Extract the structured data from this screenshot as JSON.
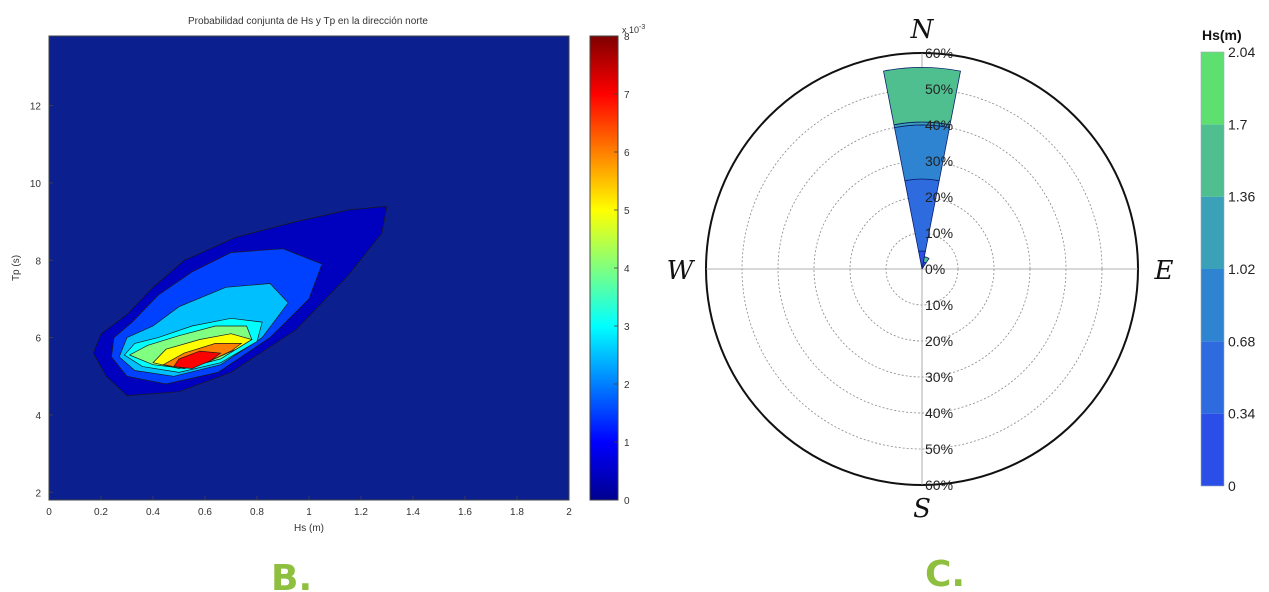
{
  "panels": {
    "b_label": "B.",
    "c_label": "C."
  },
  "colors": {
    "accent": "#8fbf3f"
  },
  "chart_data": [
    {
      "type": "heatmap",
      "title": "Probabilidad conjunta de Hs y Tp en la dirección norte",
      "xlabel": "Hs (m)",
      "ylabel": "Tp (s)",
      "xlim": [
        0,
        2
      ],
      "ylim": [
        1.8,
        13.8
      ],
      "x_ticks": [
        "0",
        "0.2",
        "0.4",
        "0.6",
        "0.8",
        "1",
        "1.2",
        "1.4",
        "1.6",
        "1.8",
        "2"
      ],
      "y_ticks": [
        "2",
        "4",
        "6",
        "8",
        "10",
        "12"
      ],
      "colorbar": {
        "min": 0,
        "max": 8,
        "ticks": [
          "0",
          "1",
          "2",
          "3",
          "4",
          "5",
          "6",
          "7",
          "8"
        ],
        "multiplier": "x 10",
        "exponent": "-3"
      },
      "contours": [
        {
          "level": 0.5,
          "points": [
            [
              0.17,
              5.6
            ],
            [
              0.22,
              5.0
            ],
            [
              0.3,
              4.5
            ],
            [
              0.5,
              4.6
            ],
            [
              0.7,
              5.1
            ],
            [
              0.95,
              6.2
            ],
            [
              1.15,
              7.6
            ],
            [
              1.28,
              8.7
            ],
            [
              1.3,
              9.4
            ],
            [
              1.15,
              9.3
            ],
            [
              0.95,
              9.0
            ],
            [
              0.72,
              8.6
            ],
            [
              0.52,
              8.0
            ],
            [
              0.4,
              7.3
            ],
            [
              0.3,
              6.6
            ],
            [
              0.2,
              6.1
            ]
          ]
        },
        {
          "level": 1.5,
          "points": [
            [
              0.24,
              5.5
            ],
            [
              0.3,
              5.0
            ],
            [
              0.45,
              4.8
            ],
            [
              0.65,
              5.1
            ],
            [
              0.85,
              6.0
            ],
            [
              1.0,
              7.0
            ],
            [
              1.05,
              7.9
            ],
            [
              0.9,
              8.3
            ],
            [
              0.7,
              8.2
            ],
            [
              0.55,
              7.7
            ],
            [
              0.42,
              7.1
            ],
            [
              0.32,
              6.4
            ],
            [
              0.25,
              6.0
            ]
          ]
        },
        {
          "level": 2.5,
          "points": [
            [
              0.27,
              5.5
            ],
            [
              0.33,
              5.15
            ],
            [
              0.48,
              5.0
            ],
            [
              0.66,
              5.3
            ],
            [
              0.82,
              6.0
            ],
            [
              0.92,
              6.9
            ],
            [
              0.85,
              7.4
            ],
            [
              0.68,
              7.3
            ],
            [
              0.5,
              6.8
            ],
            [
              0.4,
              6.3
            ],
            [
              0.3,
              6.0
            ]
          ]
        },
        {
          "level": 3.0,
          "points": [
            [
              0.29,
              5.55
            ],
            [
              0.36,
              5.25
            ],
            [
              0.5,
              5.1
            ],
            [
              0.66,
              5.35
            ],
            [
              0.8,
              5.9
            ],
            [
              0.82,
              6.4
            ],
            [
              0.7,
              6.5
            ],
            [
              0.55,
              6.3
            ],
            [
              0.42,
              6.0
            ],
            [
              0.33,
              5.85
            ]
          ]
        },
        {
          "level": 4.0,
          "points": [
            [
              0.31,
              5.55
            ],
            [
              0.4,
              5.3
            ],
            [
              0.52,
              5.2
            ],
            [
              0.66,
              5.45
            ],
            [
              0.78,
              5.95
            ],
            [
              0.76,
              6.3
            ],
            [
              0.64,
              6.3
            ],
            [
              0.5,
              6.05
            ],
            [
              0.38,
              5.8
            ]
          ]
        },
        {
          "level": 5.0,
          "points": [
            [
              0.4,
              5.35
            ],
            [
              0.5,
              5.2
            ],
            [
              0.62,
              5.4
            ],
            [
              0.72,
              5.7
            ],
            [
              0.78,
              5.95
            ],
            [
              0.7,
              6.1
            ],
            [
              0.58,
              5.95
            ],
            [
              0.45,
              5.7
            ]
          ]
        },
        {
          "level": 6.0,
          "points": [
            [
              0.44,
              5.3
            ],
            [
              0.52,
              5.2
            ],
            [
              0.62,
              5.4
            ],
            [
              0.7,
              5.65
            ],
            [
              0.74,
              5.85
            ],
            [
              0.64,
              5.85
            ],
            [
              0.52,
              5.6
            ]
          ]
        },
        {
          "level": 7.0,
          "points": [
            [
              0.48,
              5.25
            ],
            [
              0.55,
              5.2
            ],
            [
              0.62,
              5.4
            ],
            [
              0.66,
              5.6
            ],
            [
              0.58,
              5.65
            ],
            [
              0.5,
              5.45
            ]
          ]
        }
      ]
    },
    {
      "type": "rose",
      "title": "",
      "directions": {
        "n": "N",
        "s": "S",
        "e": "E",
        "w": "W"
      },
      "radial_labels": [
        "0%",
        "10%",
        "20%",
        "30%",
        "40%",
        "50%",
        "60%"
      ],
      "radial_max": 60,
      "legend_title": "Hs(m)",
      "legend_ticks": [
        "0",
        "0.34",
        "0.68",
        "1.02",
        "1.36",
        "1.7",
        "2.04"
      ],
      "bins": [
        0,
        0.34,
        0.68,
        1.02,
        1.36,
        1.7,
        2.04
      ],
      "bin_colors": [
        "#2b4ee8",
        "#2d6bdf",
        "#2e84d0",
        "#3aa1b8",
        "#4fbf90",
        "#5ee070"
      ],
      "petals": [
        {
          "direction_deg": 0,
          "half_width_deg": 11,
          "stack": [
            {
              "bin": 0,
              "to": 5
            },
            {
              "bin": 1,
              "to": 25
            },
            {
              "bin": 2,
              "to": 40
            },
            {
              "bin": 3,
              "to": 40.8
            },
            {
              "bin": 4,
              "to": 56
            }
          ]
        },
        {
          "direction_deg": 22.5,
          "half_width_deg": 11,
          "stack": [
            {
              "bin": 0,
              "to": 2
            },
            {
              "bin": 4,
              "to": 3.5
            }
          ]
        }
      ]
    }
  ]
}
